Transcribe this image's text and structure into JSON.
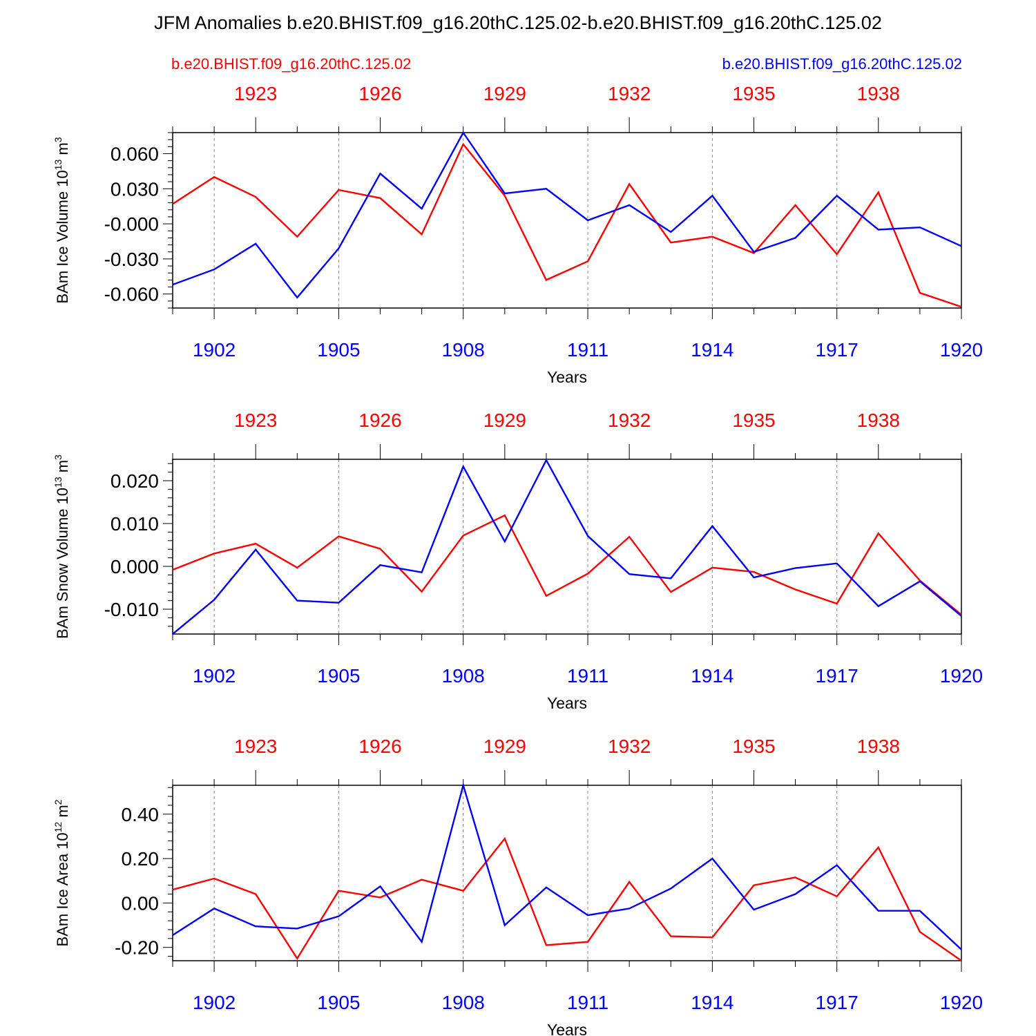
{
  "page": {
    "title": "JFM Anomalies b.e20.BHIST.f09_g16.20thC.125.02-b.e20.BHIST.f09_g16.20thC.125.02",
    "case_left": "b.e20.BHIST.f09_g16.20thC.125.02",
    "case_right": "b.e20.BHIST.f09_g16.20thC.125.02",
    "color_left": "#ff0000",
    "color_right": "#0000ff"
  },
  "chart_data": [
    {
      "type": "line",
      "ylabel": "BAm Ice Volume 10",
      "ylabel_exp": "13",
      "ylabel_unit": " m",
      "ylabel_unit_exp": "3",
      "xlabel": "Years",
      "ylim": [
        -0.072,
        0.078
      ],
      "yticks": [
        -0.06,
        -0.03,
        0.0,
        0.03,
        0.06
      ],
      "ytick_labels": [
        "-0.060",
        "-0.030",
        "-0.000",
        "0.030",
        "0.060"
      ],
      "x_bottom_ticks": [
        "1902",
        "1905",
        "1908",
        "1911",
        "1914",
        "1917",
        "1920"
      ],
      "x_top_ticks": [
        "1923",
        "1926",
        "1929",
        "1932",
        "1935",
        "1938"
      ],
      "series": [
        {
          "name": "b.e20.BHIST.f09_g16.20thC.125.02",
          "color": "#ff0000",
          "values": [
            0.017,
            0.04,
            0.023,
            -0.011,
            0.029,
            0.022,
            -0.009,
            0.068,
            0.024,
            -0.048,
            -0.032,
            0.034,
            -0.016,
            -0.011,
            -0.025,
            0.016,
            -0.026,
            0.027,
            -0.059,
            -0.071
          ]
        },
        {
          "name": "b.e20.BHIST.f09_g16.20thC.125.02",
          "color": "#0000ff",
          "values": [
            -0.052,
            -0.039,
            -0.017,
            -0.063,
            -0.021,
            0.043,
            0.013,
            0.078,
            0.026,
            0.03,
            0.003,
            0.016,
            -0.007,
            0.024,
            -0.024,
            -0.012,
            0.024,
            -0.005,
            -0.003,
            -0.019
          ]
        }
      ]
    },
    {
      "type": "line",
      "ylabel": "BAm Snow Volume 10",
      "ylabel_exp": "13",
      "ylabel_unit": " m",
      "ylabel_unit_exp": "3",
      "xlabel": "Years",
      "ylim": [
        -0.0158,
        0.025
      ],
      "yticks": [
        -0.01,
        0.0,
        0.01,
        0.02
      ],
      "ytick_labels": [
        "-0.010",
        "0.000",
        "0.010",
        "0.020"
      ],
      "x_bottom_ticks": [
        "1902",
        "1905",
        "1908",
        "1911",
        "1914",
        "1917",
        "1920"
      ],
      "x_top_ticks": [
        "1923",
        "1926",
        "1929",
        "1932",
        "1935",
        "1938"
      ],
      "series": [
        {
          "name": "b.e20.BHIST.f09_g16.20thC.125.02",
          "color": "#ff0000",
          "values": [
            -0.0008,
            0.003,
            0.0053,
            -0.0003,
            0.007,
            0.0041,
            -0.0059,
            0.0072,
            0.0119,
            -0.0069,
            -0.0017,
            0.0069,
            -0.006,
            -0.0003,
            -0.0013,
            -0.0054,
            -0.0087,
            0.0077,
            -0.0033,
            -0.0113
          ]
        },
        {
          "name": "b.e20.BHIST.f09_g16.20thC.125.02",
          "color": "#0000ff",
          "values": [
            -0.0158,
            -0.0078,
            0.0039,
            -0.008,
            -0.0085,
            0.0003,
            -0.0014,
            0.0233,
            0.0058,
            0.0248,
            0.0071,
            -0.0018,
            -0.0028,
            0.0094,
            -0.0026,
            -0.0004,
            0.0007,
            -0.0093,
            -0.0035,
            -0.0116
          ]
        }
      ]
    },
    {
      "type": "line",
      "ylabel": "BAm Ice Area 10",
      "ylabel_exp": "12",
      "ylabel_unit": " m",
      "ylabel_unit_exp": "2",
      "xlabel": "Years",
      "ylim": [
        -0.26,
        0.53
      ],
      "yticks": [
        -0.2,
        0.0,
        0.2,
        0.4
      ],
      "ytick_labels": [
        "-0.20",
        "0.00",
        "0.20",
        "0.40"
      ],
      "x_bottom_ticks": [
        "1902",
        "1905",
        "1908",
        "1911",
        "1914",
        "1917",
        "1920"
      ],
      "x_top_ticks": [
        "1923",
        "1926",
        "1929",
        "1932",
        "1935",
        "1938"
      ],
      "series": [
        {
          "name": "b.e20.BHIST.f09_g16.20thC.125.02",
          "color": "#ff0000",
          "values": [
            0.06,
            0.11,
            0.04,
            -0.25,
            0.055,
            0.025,
            0.105,
            0.055,
            0.29,
            -0.19,
            -0.175,
            0.095,
            -0.15,
            -0.155,
            0.08,
            0.115,
            0.03,
            0.25,
            -0.13,
            -0.26
          ]
        },
        {
          "name": "b.e20.BHIST.f09_g16.20thC.125.02",
          "color": "#0000ff",
          "values": [
            -0.145,
            -0.025,
            -0.105,
            -0.115,
            -0.06,
            0.075,
            -0.175,
            0.53,
            -0.1,
            0.07,
            -0.055,
            -0.025,
            0.065,
            0.2,
            -0.03,
            0.04,
            0.17,
            -0.035,
            -0.035,
            -0.21
          ]
        }
      ]
    }
  ]
}
